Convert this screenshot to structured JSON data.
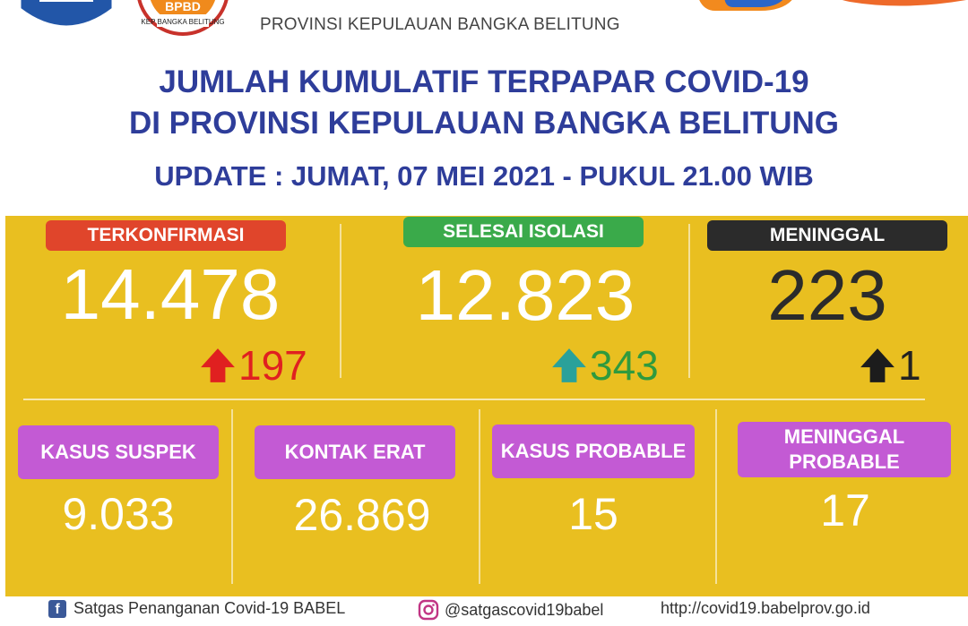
{
  "header": {
    "province": "PROVINSI KEPULAUAN BANGKA BELITUNG",
    "title_line1": "JUMLAH KUMULATIF TERPAPAR COVID-19",
    "title_line2": "DI PROVINSI KEPULAUAN BANGKA BELITUNG",
    "update": "UPDATE : JUMAT, 07 MEI 2021 - PUKUL 21.00 WIB",
    "bpbd_logo_text": "BPBD",
    "bpbd_logo_subtext": "KEP BANGKA BELITUNG"
  },
  "main_stats": [
    {
      "label": "TERKONFIRMASI",
      "value": "14.478",
      "delta": "197",
      "badge_color": "#e0452b",
      "value_color": "#ffffff",
      "delta_color": "#e02020",
      "arrow": "arrow-up-icon"
    },
    {
      "label": "SELESAI ISOLASI",
      "value": "12.823",
      "delta": "343",
      "badge_color": "#3aaa4a",
      "value_color": "#ffffff",
      "delta_color": "#2f9a3e",
      "arrow": "arrow-up-icon"
    },
    {
      "label": "MENINGGAL",
      "value": "223",
      "delta": "1",
      "badge_color": "#2b2b2b",
      "value_color": "#2b2b2b",
      "delta_color": "#222222",
      "arrow": "arrow-up-icon"
    }
  ],
  "secondary_stats": [
    {
      "label": "KASUS SUSPEK",
      "value": "9.033"
    },
    {
      "label": "KONTAK ERAT",
      "value": "26.869"
    },
    {
      "label": "KASUS PROBABLE",
      "value": "15"
    },
    {
      "label_line1": "MENINGGAL",
      "label_line2": "PROBABLE",
      "value": "17"
    }
  ],
  "footer": {
    "facebook": "Satgas Penanganan Covid-19 BABEL",
    "instagram": "@satgascovid19babel",
    "website": "http://covid19.babelprov.go.id",
    "facebook_icon_glyph": "f"
  },
  "colors": {
    "panel": "#e9bf20",
    "title": "#2e3d9a",
    "purple_badge": "#c35ad4",
    "arrow_teal": "#2aa19a"
  }
}
